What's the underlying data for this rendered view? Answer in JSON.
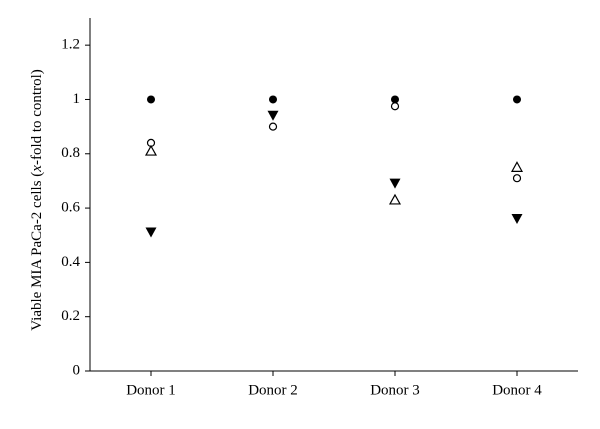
{
  "chart_data": {
    "type": "scatter",
    "ylabel": [
      "Viable MIA PaCa-2 cells (",
      "x",
      "-fold to control)"
    ],
    "categories": [
      "Donor 1",
      "Donor 2",
      "Donor 3",
      "Donor 4"
    ],
    "series": [
      {
        "marker": "filled-circle",
        "color": "#000000",
        "values": [
          1,
          1,
          1,
          1
        ]
      },
      {
        "marker": "open-circle",
        "color": "#000000",
        "values": [
          0.84,
          0.9,
          0.975,
          0.71
        ]
      },
      {
        "marker": "open-triangle",
        "color": "#000000",
        "values": [
          0.81,
          null,
          0.63,
          0.75
        ]
      },
      {
        "marker": "filled-down-triangle",
        "color": "#000000",
        "values": [
          0.51,
          0.94,
          0.69,
          0.56
        ]
      }
    ],
    "ylim": [
      0,
      1.3
    ],
    "yticks": [
      0,
      0.2,
      0.4,
      0.6,
      0.8,
      1,
      1.2
    ]
  }
}
